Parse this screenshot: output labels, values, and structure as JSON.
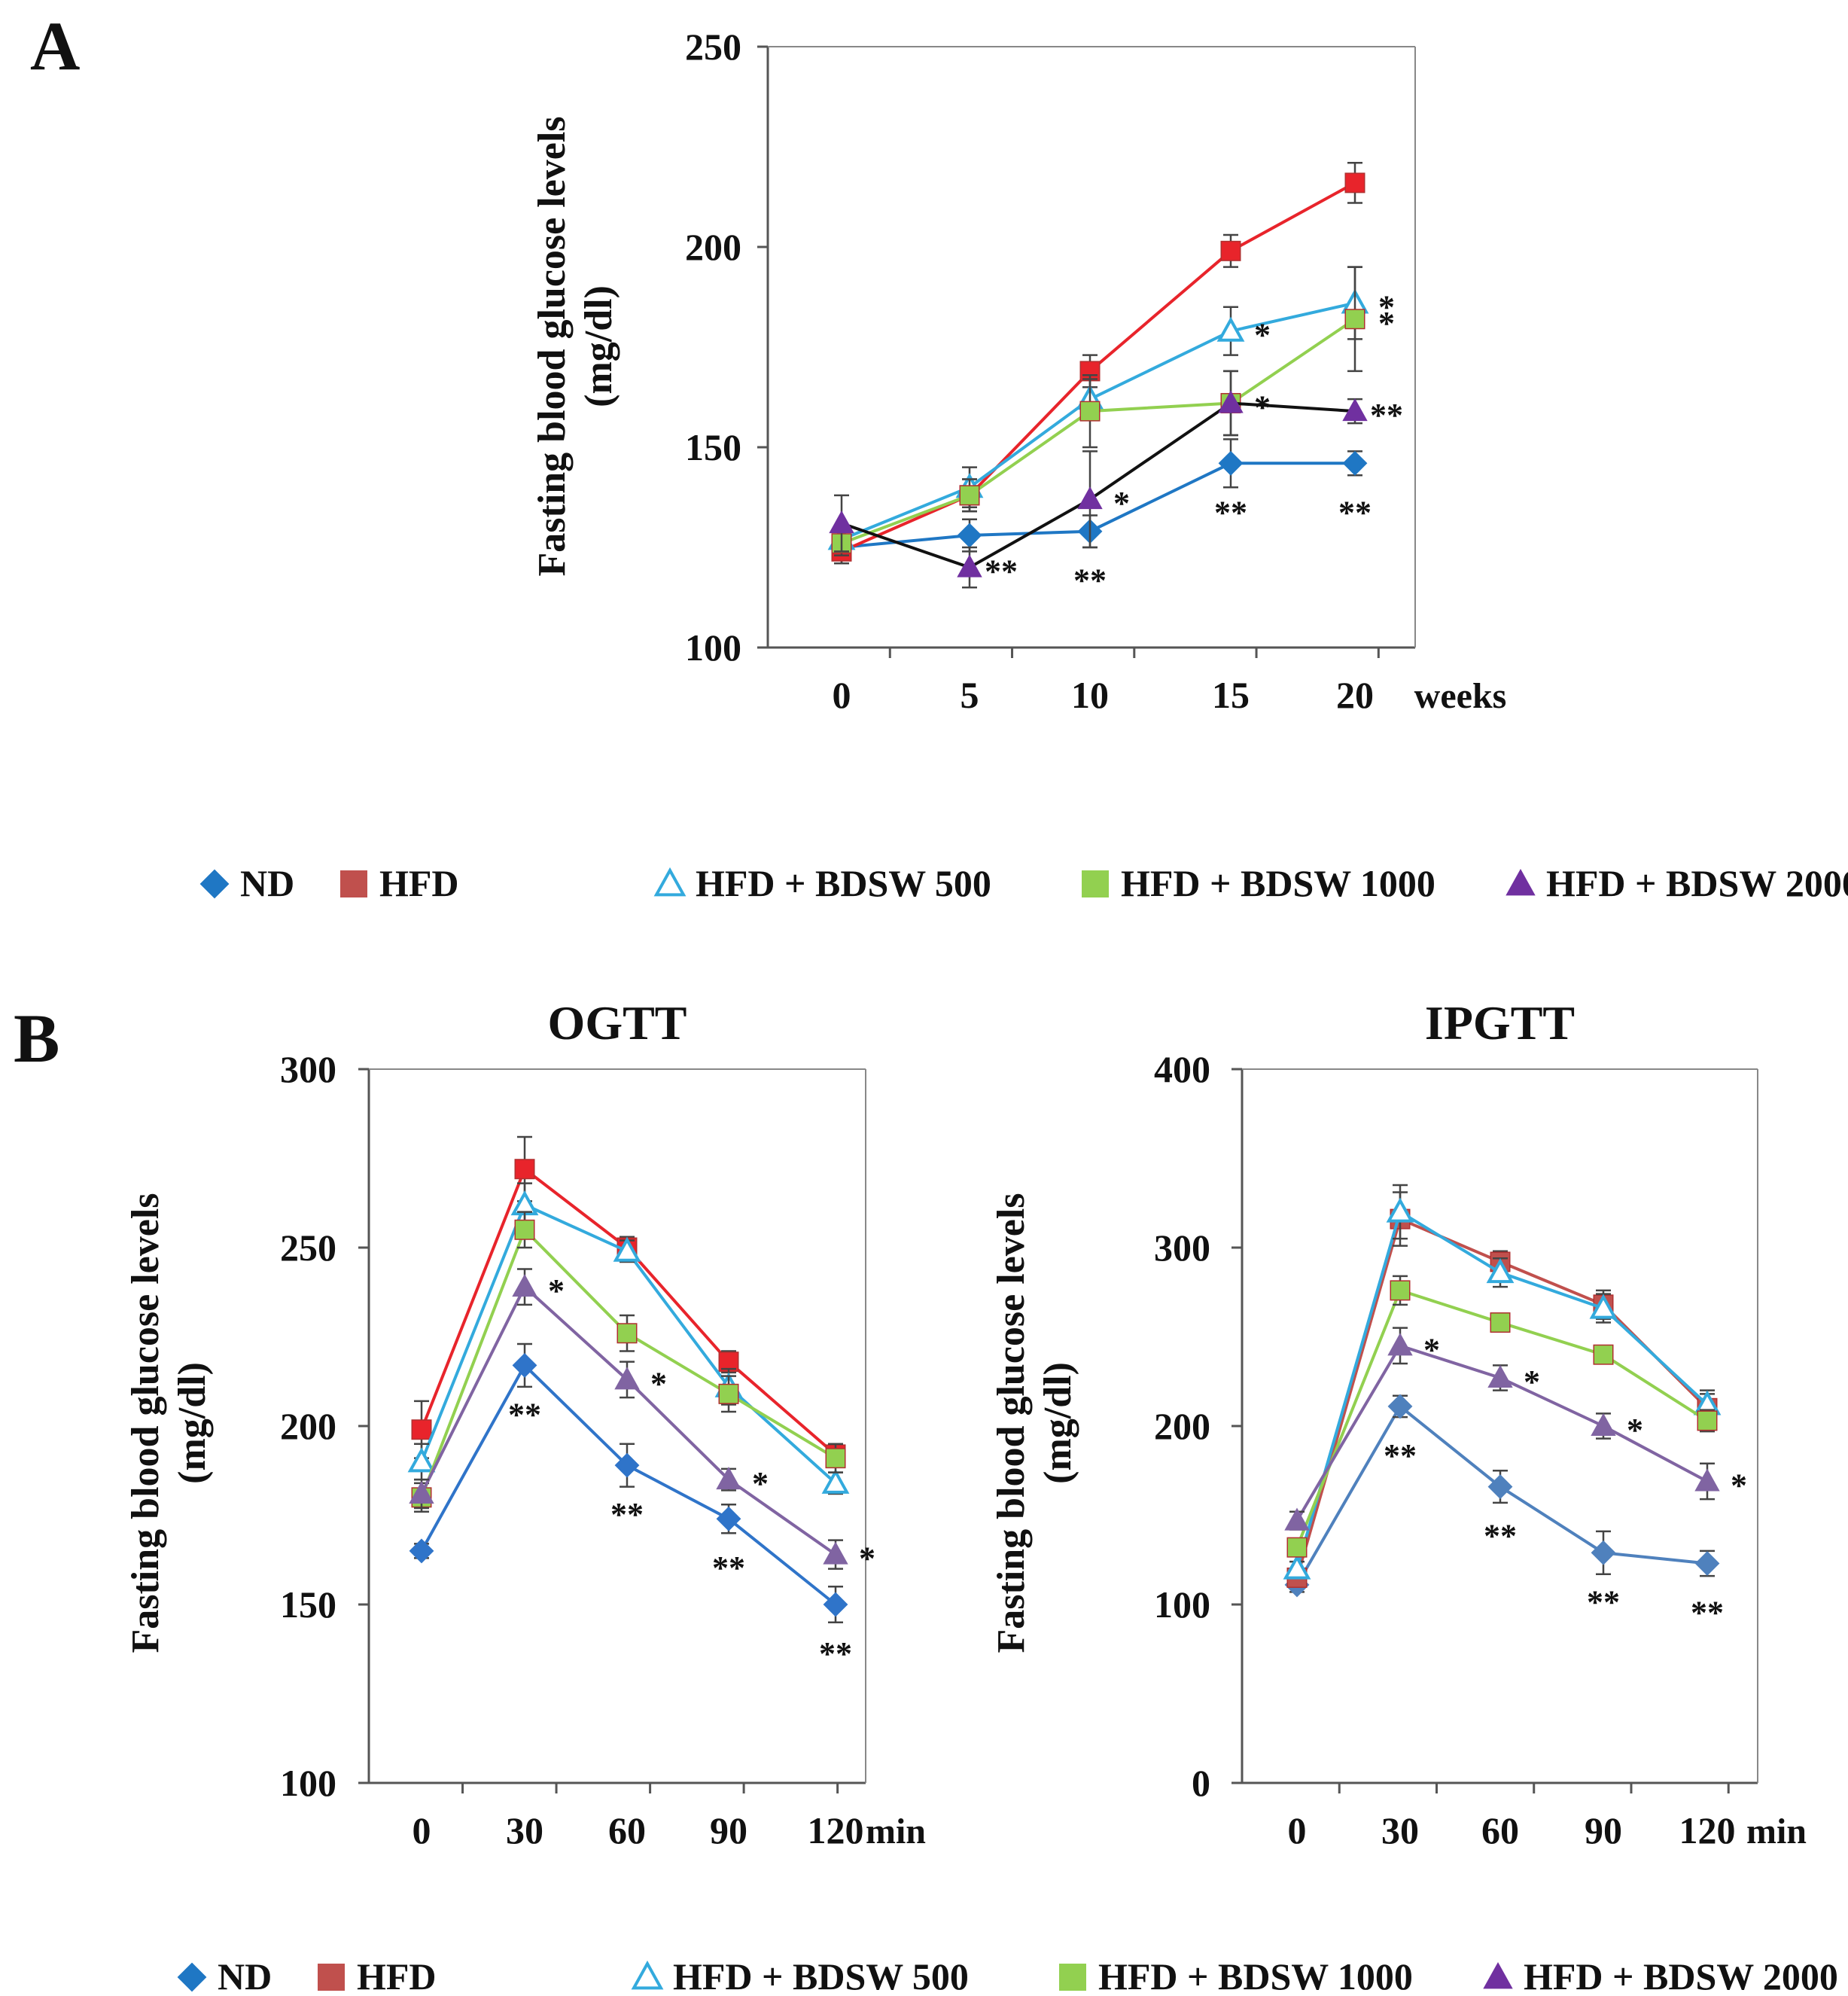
{
  "figure": {
    "panel_a_letter": "A",
    "panel_b_letter": "B"
  },
  "legend": {
    "items": [
      {
        "label": "ND",
        "marker": "diamond-marker",
        "color": "#1f77c4"
      },
      {
        "label": "HFD",
        "marker": "square-marker",
        "color": "#c0504d"
      },
      {
        "label": "HFD + BDSW 500",
        "marker": "open-triangle-marker",
        "color": "#33aadd"
      },
      {
        "label": "HFD + BDSW 1000",
        "marker": "square-marker",
        "color": "#92d050"
      },
      {
        "label": "HFD + BDSW 2000",
        "marker": "triangle-marker",
        "color": "#7030a0"
      }
    ]
  },
  "chart_data": [
    {
      "id": "A",
      "type": "line",
      "title": "",
      "xlabel": "weeks",
      "ylabel": "Fasting blood glucose levels (mg/dl)",
      "ylabel_lines": [
        "Fasting blood glucose levels",
        "(mg/dl)"
      ],
      "categories": [
        "0",
        "5",
        "10",
        "15",
        "20"
      ],
      "ylim": [
        100,
        250
      ],
      "yticks": [
        100,
        150,
        200,
        250
      ],
      "series": [
        {
          "name": "ND",
          "color": "#1f77c4",
          "marker": "diamond",
          "values": [
            125,
            128,
            129,
            146,
            146
          ],
          "errors": [
            4,
            4,
            4,
            6,
            3
          ],
          "annotations": [
            "",
            "",
            "**",
            "**",
            "**"
          ]
        },
        {
          "name": "HFD",
          "color": "#e8242b",
          "marker": "square",
          "values": [
            124,
            138,
            169,
            199,
            216
          ],
          "errors": [
            3,
            4,
            4,
            4,
            5
          ],
          "annotations": [
            "",
            "",
            "",
            "",
            ""
          ]
        },
        {
          "name": "HFD + BDSW 500",
          "color": "#33aadd",
          "marker": "open-triangle",
          "values": [
            127,
            140,
            162,
            179,
            186
          ],
          "errors": [
            3,
            5,
            5,
            6,
            9
          ],
          "annotations": [
            "",
            "",
            "",
            "*",
            "*"
          ]
        },
        {
          "name": "HFD + BDSW 1000",
          "color": "#92d050",
          "marker": "square",
          "values": [
            126,
            138,
            159,
            161,
            182
          ],
          "errors": [
            3,
            4,
            9,
            8,
            13
          ],
          "annotations": [
            "",
            "",
            "",
            "*",
            "*"
          ]
        },
        {
          "name": "HFD + BDSW 2000",
          "color": "#7030a0",
          "line_color": "#111111",
          "marker": "triangle",
          "values": [
            131,
            120,
            137,
            161,
            159
          ],
          "errors": [
            7,
            5,
            12,
            8,
            3
          ],
          "annotations": [
            "",
            "**",
            "*",
            "*",
            "**"
          ]
        }
      ]
    },
    {
      "id": "OGTT",
      "type": "line",
      "title": "OGTT",
      "xlabel": "min",
      "ylabel": "Fasting blood glucose levels (mg/dl)",
      "ylabel_lines": [
        "Fasting blood glucose levels",
        "(mg/dl)"
      ],
      "categories": [
        "0",
        "30",
        "60",
        "90",
        "120"
      ],
      "ylim": [
        100,
        300
      ],
      "yticks": [
        100,
        150,
        200,
        250,
        300
      ],
      "series": [
        {
          "name": "ND",
          "color": "#2f74c9",
          "marker": "diamond",
          "values": [
            165,
            217,
            189,
            174,
            150
          ],
          "errors": [
            2,
            6,
            6,
            4,
            5
          ],
          "annotations": [
            "",
            "**",
            "**",
            "**",
            "**"
          ]
        },
        {
          "name": "HFD",
          "color": "#e8242b",
          "marker": "square",
          "values": [
            199,
            272,
            250,
            218,
            192
          ],
          "errors": [
            8,
            9,
            3,
            3,
            3
          ],
          "annotations": [
            "",
            "",
            "",
            "",
            ""
          ]
        },
        {
          "name": "HFD + BDSW 500",
          "color": "#33aadd",
          "marker": "open-triangle",
          "values": [
            190,
            262,
            249,
            211,
            184
          ],
          "errors": [
            5,
            6,
            3,
            5,
            3
          ],
          "annotations": [
            "",
            "",
            "",
            "",
            ""
          ]
        },
        {
          "name": "HFD + BDSW 1000",
          "color": "#92d050",
          "marker": "square",
          "values": [
            180,
            255,
            226,
            209,
            191
          ],
          "errors": [
            4,
            5,
            5,
            5,
            4
          ],
          "annotations": [
            "",
            "",
            "",
            "",
            ""
          ]
        },
        {
          "name": "HFD + BDSW 2000",
          "color": "#8064a2",
          "marker": "triangle",
          "values": [
            181,
            239,
            213,
            185,
            164
          ],
          "errors": [
            4,
            5,
            5,
            3,
            4
          ],
          "annotations": [
            "",
            "*",
            "*",
            "*",
            "*"
          ]
        }
      ]
    },
    {
      "id": "IPGTT",
      "type": "line",
      "title": "IPGTT",
      "xlabel": "min",
      "ylabel": "Fasting blood glucose levels (mg/dl)",
      "ylabel_lines": [
        "Fasting blood glucose levels",
        "(mg/dl)"
      ],
      "categories": [
        "0",
        "30",
        "60",
        "90",
        "120"
      ],
      "ylim": [
        0,
        400
      ],
      "yticks": [
        0,
        100,
        200,
        300,
        400
      ],
      "series": [
        {
          "name": "ND",
          "color": "#4f81bd",
          "marker": "diamond",
          "values": [
            111,
            211,
            166,
            129,
            123
          ],
          "errors": [
            4,
            6,
            9,
            12,
            7
          ],
          "annotations": [
            "",
            "**",
            "**",
            "**",
            "**"
          ]
        },
        {
          "name": "HFD",
          "color": "#c0504d",
          "marker": "square",
          "values": [
            115,
            316,
            292,
            268,
            210
          ],
          "errors": [
            5,
            15,
            6,
            8,
            8
          ],
          "annotations": [
            "",
            "",
            "",
            "",
            ""
          ]
        },
        {
          "name": "HFD + BDSW 500",
          "color": "#33aadd",
          "marker": "open-triangle",
          "values": [
            120,
            320,
            286,
            266,
            212
          ],
          "errors": [
            4,
            15,
            8,
            8,
            8
          ],
          "annotations": [
            "",
            "",
            "",
            "",
            ""
          ]
        },
        {
          "name": "HFD + BDSW 1000",
          "color": "#92d050",
          "marker": "square",
          "values": [
            132,
            276,
            258,
            240,
            203
          ],
          "errors": [
            5,
            8,
            5,
            5,
            6
          ],
          "annotations": [
            "",
            "",
            "",
            "",
            ""
          ]
        },
        {
          "name": "HFD + BDSW 2000",
          "color": "#8064a2",
          "marker": "triangle",
          "values": [
            147,
            245,
            227,
            200,
            169
          ],
          "errors": [
            5,
            10,
            7,
            7,
            10
          ],
          "annotations": [
            "",
            "*",
            "*",
            "*",
            "*"
          ]
        }
      ]
    }
  ]
}
